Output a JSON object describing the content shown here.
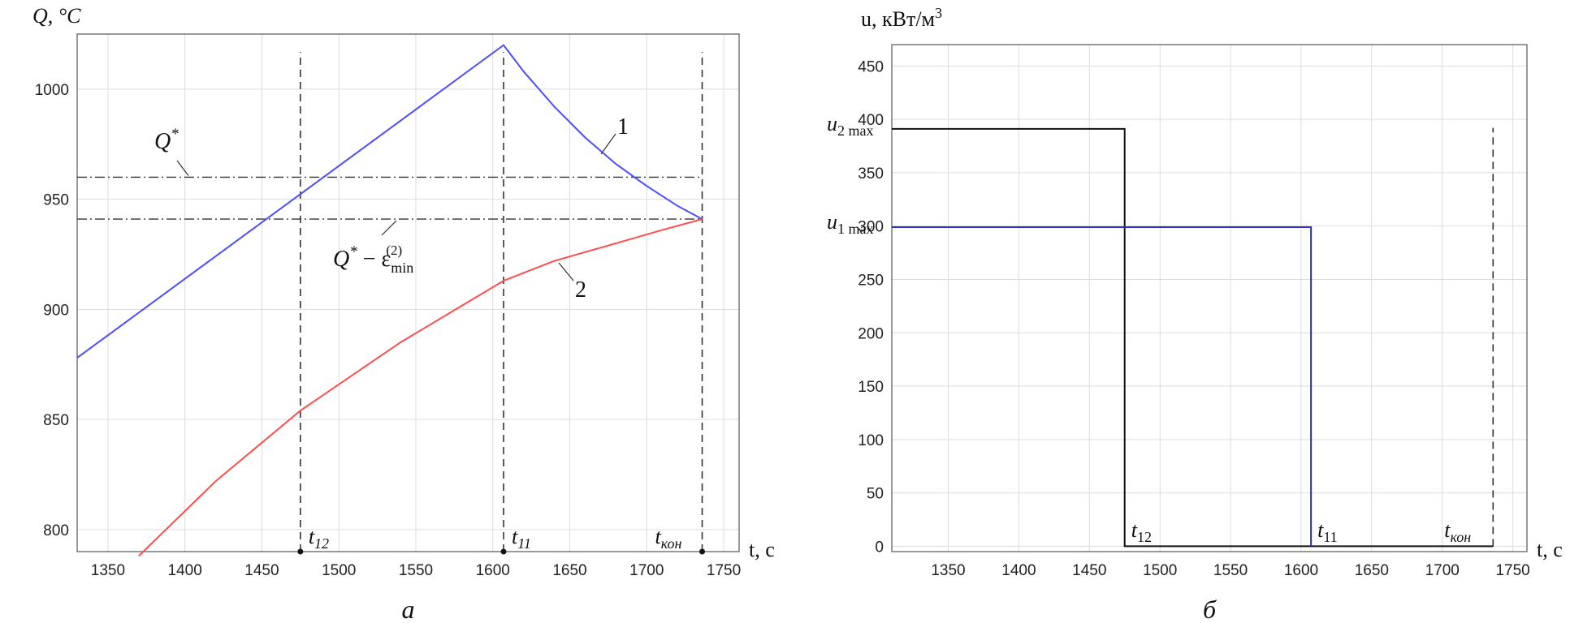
{
  "chart_data": [
    {
      "panel_letter": "а",
      "type": "line",
      "ylabel": "Q, °C",
      "xlabel": "t, с",
      "xlim": [
        1330,
        1760
      ],
      "ylim": [
        790,
        1025
      ],
      "xticks": [
        1350,
        1400,
        1450,
        1500,
        1550,
        1600,
        1650,
        1700,
        1750
      ],
      "yticks": [
        800,
        850,
        900,
        950,
        1000
      ],
      "grid": true,
      "series": [
        {
          "name": "1",
          "color": "#4d4dff",
          "points": [
            [
              1330,
              878
            ],
            [
              1607,
              1020
            ],
            [
              1620,
              1008
            ],
            [
              1640,
              992
            ],
            [
              1660,
              978
            ],
            [
              1680,
              966
            ],
            [
              1700,
              956
            ],
            [
              1720,
              947
            ],
            [
              1736,
              941
            ]
          ]
        },
        {
          "name": "2",
          "color": "#ff4d4d",
          "points": [
            [
              1370,
              788
            ],
            [
              1420,
              822
            ],
            [
              1475,
              854
            ],
            [
              1540,
              885
            ],
            [
              1607,
              913
            ],
            [
              1640,
              922
            ],
            [
              1680,
              930
            ],
            [
              1710,
              936
            ],
            [
              1736,
              941
            ]
          ]
        }
      ],
      "hlines": [
        {
          "y": 960,
          "label_main": "Q",
          "label_sup": "*"
        },
        {
          "y": 941,
          "label_main": "Q",
          "label_sup": "*",
          "label_rest": " − ε",
          "label_sub": "min",
          "label_sup2": "(2)"
        }
      ],
      "vlines": [
        {
          "x": 1475,
          "label_main": "t",
          "label_sub": "12"
        },
        {
          "x": 1607,
          "label_main": "t",
          "label_sub": "11"
        },
        {
          "x": 1736,
          "label_main": "t",
          "label_sub": "кон"
        }
      ]
    },
    {
      "panel_letter": "б",
      "type": "line",
      "ylabel": "u, кВт/м",
      "ylabel_sup": "3",
      "xlabel": "t, с",
      "xlim": [
        1310,
        1760
      ],
      "ylim": [
        -5,
        470
      ],
      "xticks": [
        1350,
        1400,
        1450,
        1500,
        1550,
        1600,
        1650,
        1700,
        1750
      ],
      "yticks": [
        0,
        50,
        100,
        150,
        200,
        250,
        300,
        350,
        400,
        450
      ],
      "grid": true,
      "series": [
        {
          "name": "u2",
          "color": "#111111",
          "points": [
            [
              1310,
              391
            ],
            [
              1475,
              391
            ],
            [
              1475,
              0
            ],
            [
              1736,
              0
            ]
          ]
        },
        {
          "name": "u1",
          "color": "#2f2fd6",
          "points": [
            [
              1310,
              299
            ],
            [
              1607,
              299
            ],
            [
              1607,
              0
            ]
          ]
        }
      ],
      "ylabels_special": [
        {
          "y": 391,
          "label_main": "u",
          "label_sub": "2 max"
        },
        {
          "y": 299,
          "label_main": "u",
          "label_sub": "1 max"
        }
      ],
      "vlines": [
        {
          "x": 1736,
          "label_main": "t",
          "label_sub": "кон",
          "y0": 0,
          "y1": 392
        }
      ],
      "marker_labels": [
        {
          "x": 1475,
          "label_main": "t",
          "label_sub": "12"
        },
        {
          "x": 1607,
          "label_main": "t",
          "label_sub": "11"
        }
      ]
    }
  ]
}
